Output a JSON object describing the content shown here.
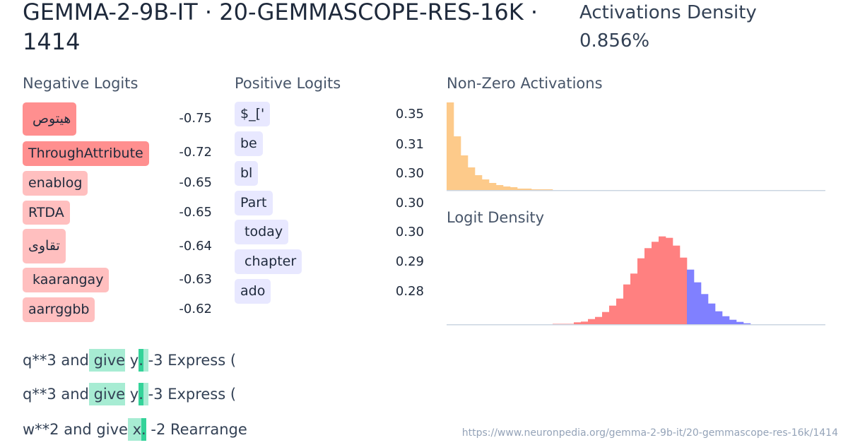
{
  "header": {
    "title": "GEMMA-2-9B-IT · 20-GEMMASCOPE-RES-16K · 1414",
    "density_label": "Activations Density",
    "density_value": "0.856%"
  },
  "negative_logits": {
    "heading": "Negative Logits",
    "items": [
      {
        "token": " هيتوص",
        "value": "-0.75",
        "color": "#ff8f8f"
      },
      {
        "token": "ThroughAttribute",
        "value": "-0.72",
        "color": "#ff8f8f"
      },
      {
        "token": "enablog",
        "value": "-0.65",
        "color": "#ffbfbf"
      },
      {
        "token": "RTDA",
        "value": "-0.65",
        "color": "#ffbfbf"
      },
      {
        "token": "تقاوى",
        "value": "-0.64",
        "color": "#ffbfbf"
      },
      {
        "token": " kaarangay",
        "value": "-0.63",
        "color": "#ffbfbf"
      },
      {
        "token": "aarrggbb",
        "value": "-0.62",
        "color": "#ffbfbf"
      }
    ]
  },
  "positive_logits": {
    "heading": "Positive Logits",
    "items": [
      {
        "token": "$_['",
        "value": "0.35"
      },
      {
        "token": "be",
        "value": "0.31"
      },
      {
        "token": "bl",
        "value": "0.30"
      },
      {
        "token": "Part",
        "value": "0.30"
      },
      {
        "token": " today",
        "value": "0.30"
      },
      {
        "token": " chapter",
        "value": "0.29"
      },
      {
        "token": "ado",
        "value": "0.28"
      }
    ],
    "color": "#e8e8ff"
  },
  "chart_data": [
    {
      "type": "bar",
      "title": "Non-Zero Activations",
      "color": "#fdca8a",
      "values": [
        124,
        76,
        49,
        32,
        21,
        15,
        10,
        7,
        5,
        4,
        2,
        2,
        1,
        1,
        1
      ]
    },
    {
      "type": "bar",
      "title": "Logit Density",
      "negative_color": "#ff8080",
      "positive_color": "#8080ff",
      "leading_empty_bins": 15,
      "negative_values": [
        0.5,
        0.5,
        0.5,
        2.7,
        3.7,
        7.3,
        10.3,
        17.3,
        26.3,
        36.3,
        56.3,
        71.7,
        93.3,
        107.7,
        116.7,
        124.3,
        122.3,
        111.3,
        94.3
      ],
      "positive_values": [
        77.3,
        59.3,
        42.7,
        29.3,
        18.3,
        11.3,
        6.3,
        3.3,
        1.3
      ]
    }
  ],
  "examples": [
    [
      {
        "t": "q**3",
        "a": 0
      },
      {
        "t": " and",
        "a": 0
      },
      {
        "t": " give",
        "a": 1
      },
      {
        "t": " y",
        "a": 0
      },
      {
        "t": ".",
        "a": 2
      },
      {
        "t": " ",
        "a": 1
      },
      {
        "t": "-3",
        "a": 0
      },
      {
        "t": " Express",
        "a": 0
      },
      {
        "t": " (",
        "a": 0
      }
    ],
    [
      {
        "t": "q**3",
        "a": 0
      },
      {
        "t": " and",
        "a": 0
      },
      {
        "t": " give",
        "a": 1
      },
      {
        "t": " y",
        "a": 0
      },
      {
        "t": ".",
        "a": 2
      },
      {
        "t": " ",
        "a": 1
      },
      {
        "t": "-3",
        "a": 0
      },
      {
        "t": " Express",
        "a": 0
      },
      {
        "t": " (",
        "a": 0
      }
    ],
    [
      {
        "t": "w**2",
        "a": 0
      },
      {
        "t": " and",
        "a": 0
      },
      {
        "t": " give",
        "a": 0
      },
      {
        "t": " x",
        "a": 1
      },
      {
        "t": ".",
        "a": 2
      },
      {
        "t": " -2",
        "a": 0
      },
      {
        "t": " Rearrange",
        "a": 0
      }
    ]
  ],
  "highlight_colors": {
    "light": "#a7ecd3",
    "strong": "#34d399"
  },
  "footer": {
    "url": "https://www.neuronpedia.org/gemma-2-9b-it/20-gemmascope-res-16k/1414"
  }
}
